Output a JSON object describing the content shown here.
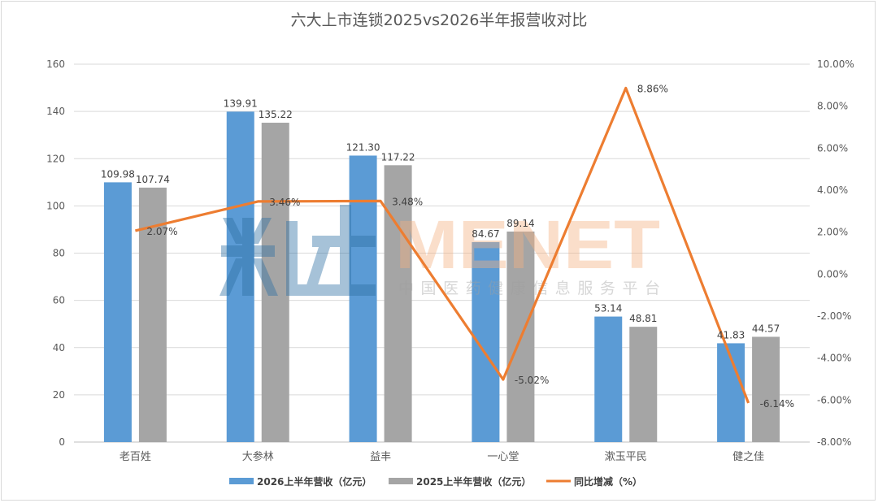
{
  "chart_data": {
    "type": "bar",
    "title": "六大上市连锁2025vs2026半年报营收对比",
    "categories": [
      "老百姓",
      "大参林",
      "益丰",
      "一心堂",
      "漱玉平民",
      "健之佳"
    ],
    "series": [
      {
        "name": "2026上半年营收（亿元）",
        "kind": "bar",
        "axis": "left",
        "color": "#5b9bd5",
        "values": [
          109.98,
          139.91,
          121.3,
          84.67,
          53.14,
          41.83
        ],
        "labels": [
          "109.98",
          "139.91",
          "121.30",
          "84.67",
          "53.14",
          "41.83"
        ]
      },
      {
        "name": "2025上半年营收（亿元）",
        "kind": "bar",
        "axis": "left",
        "color": "#a5a5a5",
        "values": [
          107.74,
          135.22,
          117.22,
          89.14,
          48.81,
          44.57
        ],
        "labels": [
          "107.74",
          "135.22",
          "117.22",
          "89.14",
          "48.81",
          "44.57"
        ]
      },
      {
        "name": "同比增减（%）",
        "kind": "line",
        "axis": "right",
        "color": "#ed7d31",
        "values": [
          2.07,
          3.46,
          3.48,
          -5.02,
          8.86,
          -6.14
        ],
        "labels": [
          "2.07%",
          "3.46%",
          "3.48%",
          "-5.02%",
          "8.86%",
          "-6.14%"
        ]
      }
    ],
    "y_left": {
      "min": 0,
      "max": 160,
      "ticks": [
        "0",
        "20",
        "40",
        "60",
        "80",
        "100",
        "120",
        "140",
        "160"
      ]
    },
    "y_right": {
      "min": -8,
      "max": 10,
      "ticks": [
        "-8.00%",
        "-6.00%",
        "-4.00%",
        "-2.00%",
        "0.00%",
        "2.00%",
        "4.00%",
        "6.00%",
        "8.00%",
        "10.00%"
      ]
    },
    "grid": true,
    "legend_position": "bottom"
  },
  "watermark": {
    "logo_text": "米内",
    "brand": "MENET",
    "tagline": "中国医药健康信息服务平台"
  }
}
